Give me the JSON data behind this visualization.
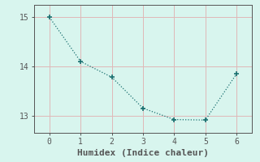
{
  "x": [
    0,
    1,
    2,
    3,
    4,
    5,
    6
  ],
  "y": [
    15.0,
    14.1,
    13.78,
    13.15,
    12.92,
    12.91,
    13.85
  ],
  "line_color": "#1a7070",
  "marker": "+",
  "markersize": 4,
  "markeredgewidth": 1.2,
  "background_color": "#d8f5ee",
  "grid_color": "#e0b8b8",
  "axis_color": "#555555",
  "xlabel": "Humidex (Indice chaleur)",
  "xlabel_fontsize": 8,
  "tick_fontsize": 7,
  "xlim": [
    -0.5,
    6.5
  ],
  "ylim": [
    12.65,
    15.25
  ],
  "yticks": [
    13,
    14,
    15
  ],
  "xticks": [
    0,
    1,
    2,
    3,
    4,
    5,
    6
  ],
  "linewidth": 0.9,
  "font_family": "monospace"
}
